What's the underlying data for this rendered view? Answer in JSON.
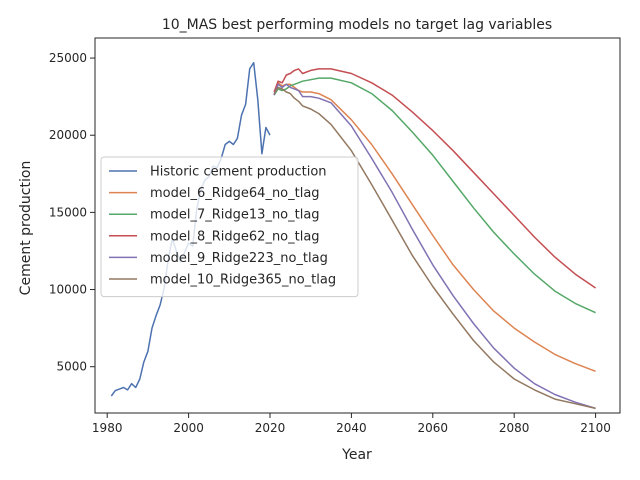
{
  "chart_data": {
    "type": "line",
    "title": "10_MAS best performing models no target lag variables",
    "xlabel": "Year",
    "ylabel": "Cement production",
    "xlim": [
      1977,
      2106
    ],
    "ylim": [
      2000,
      26300
    ],
    "xticks": [
      1980,
      2000,
      2020,
      2040,
      2060,
      2080,
      2100
    ],
    "yticks": [
      5000,
      10000,
      15000,
      20000,
      25000
    ],
    "xtick_labels": [
      "1980",
      "2000",
      "2020",
      "2040",
      "2060",
      "2080",
      "2100"
    ],
    "ytick_labels": [
      "5000",
      "10000",
      "15000",
      "20000",
      "25000"
    ],
    "grid": false,
    "legend_position": "center-left",
    "series": [
      {
        "name": "Historic cement production",
        "color": "#4c72b0",
        "x": [
          1981,
          1982,
          1983,
          1984,
          1985,
          1986,
          1987,
          1988,
          1989,
          1990,
          1991,
          1992,
          1993,
          1994,
          1995,
          1996,
          1997,
          1998,
          1999,
          2000,
          2001,
          2002,
          2003,
          2004,
          2005,
          2006,
          2007,
          2008,
          2009,
          2010,
          2011,
          2012,
          2013,
          2014,
          2015,
          2016,
          2017,
          2018,
          2019,
          2020
        ],
        "y": [
          3100,
          3450,
          3550,
          3650,
          3500,
          3900,
          3650,
          4200,
          5300,
          6000,
          7500,
          8300,
          9000,
          10100,
          12000,
          13300,
          12500,
          11800,
          12400,
          13000,
          12800,
          15200,
          16500,
          17100,
          17300,
          18000,
          17900,
          18500,
          19400,
          19600,
          19400,
          19800,
          21300,
          22000,
          24300,
          24700,
          22300,
          18800,
          20500,
          20000
        ]
      },
      {
        "name": "model_6_Ridge64_no_tlag",
        "color": "#dd8452",
        "x": [
          2021,
          2022,
          2023,
          2024,
          2025,
          2026,
          2027,
          2028,
          2030,
          2032,
          2035,
          2040,
          2045,
          2050,
          2055,
          2060,
          2065,
          2070,
          2075,
          2080,
          2085,
          2090,
          2095,
          2100
        ],
        "y": [
          22600,
          23400,
          23200,
          23300,
          23300,
          23100,
          22900,
          22800,
          22800,
          22700,
          22300,
          21000,
          19400,
          17500,
          15500,
          13500,
          11600,
          10000,
          8600,
          7500,
          6600,
          5800,
          5200,
          4700
        ]
      },
      {
        "name": "model_7_Ridge13_no_tlag",
        "color": "#55a868",
        "x": [
          2021,
          2022,
          2023,
          2024,
          2025,
          2026,
          2027,
          2028,
          2030,
          2032,
          2035,
          2040,
          2045,
          2050,
          2055,
          2060,
          2065,
          2070,
          2075,
          2080,
          2085,
          2090,
          2095,
          2100
        ],
        "y": [
          22600,
          23000,
          22900,
          23000,
          23200,
          23300,
          23400,
          23500,
          23600,
          23700,
          23700,
          23400,
          22700,
          21600,
          20200,
          18700,
          17000,
          15300,
          13700,
          12300,
          11000,
          9900,
          9100,
          8500
        ]
      },
      {
        "name": "model_8_Ridge62_no_tlag",
        "color": "#c44e52",
        "x": [
          2021,
          2022,
          2023,
          2024,
          2025,
          2026,
          2027,
          2028,
          2030,
          2032,
          2035,
          2040,
          2045,
          2050,
          2055,
          2060,
          2065,
          2070,
          2075,
          2080,
          2085,
          2090,
          2095,
          2100
        ],
        "y": [
          22800,
          23500,
          23400,
          23900,
          24000,
          24200,
          24300,
          24000,
          24200,
          24300,
          24300,
          24000,
          23400,
          22600,
          21500,
          20300,
          19000,
          17600,
          16200,
          14800,
          13400,
          12100,
          11000,
          10100
        ]
      },
      {
        "name": "model_9_Ridge223_no_tlag",
        "color": "#8172b3",
        "x": [
          2021,
          2022,
          2023,
          2024,
          2025,
          2026,
          2027,
          2028,
          2030,
          2032,
          2035,
          2040,
          2045,
          2050,
          2055,
          2060,
          2065,
          2070,
          2075,
          2080,
          2085,
          2090,
          2095,
          2100
        ],
        "y": [
          22600,
          23300,
          23100,
          23300,
          23100,
          23000,
          22900,
          22500,
          22500,
          22400,
          22100,
          20600,
          18500,
          16300,
          13900,
          11600,
          9600,
          7800,
          6200,
          4900,
          3900,
          3200,
          2700,
          2300
        ]
      },
      {
        "name": "model_10_Ridge365_no_tlag",
        "color": "#937860",
        "x": [
          2021,
          2022,
          2023,
          2024,
          2025,
          2026,
          2027,
          2028,
          2030,
          2032,
          2035,
          2040,
          2045,
          2050,
          2055,
          2060,
          2065,
          2070,
          2075,
          2080,
          2085,
          2090,
          2095,
          2100
        ],
        "y": [
          22700,
          23100,
          23000,
          22800,
          22700,
          22400,
          22200,
          21900,
          21700,
          21400,
          20700,
          19000,
          16800,
          14500,
          12200,
          10200,
          8400,
          6700,
          5300,
          4200,
          3500,
          2900,
          2600,
          2300
        ]
      }
    ]
  }
}
